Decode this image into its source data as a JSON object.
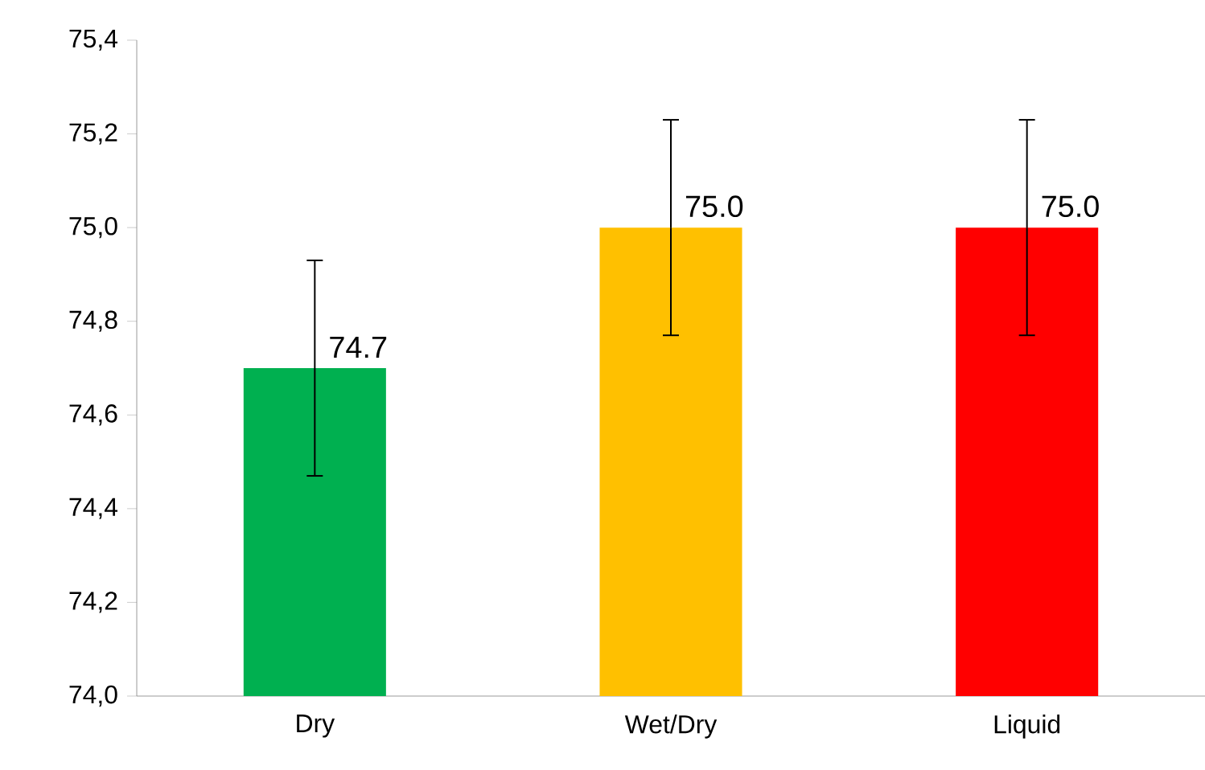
{
  "chart_data": {
    "type": "bar",
    "categories": [
      "Dry",
      "Wet/Dry",
      "Liquid"
    ],
    "values": [
      74.7,
      75.0,
      75.0
    ],
    "colors": [
      "#00b050",
      "#ffc000",
      "#ff0000"
    ],
    "errors": [
      0.23,
      0.23,
      0.23
    ],
    "value_labels": [
      "74.7",
      "75.0",
      "75.0"
    ],
    "ylim": [
      74.0,
      75.4
    ],
    "yticks": [
      {
        "value": 74.0,
        "label": "74,0"
      },
      {
        "value": 74.2,
        "label": "74,2"
      },
      {
        "value": 74.4,
        "label": "74,4"
      },
      {
        "value": 74.6,
        "label": "74,6"
      },
      {
        "value": 74.8,
        "label": "74,8"
      },
      {
        "value": 75.0,
        "label": "75,0"
      },
      {
        "value": 75.2,
        "label": "75,2"
      },
      {
        "value": 75.4,
        "label": "75,4"
      }
    ],
    "grid": false
  }
}
